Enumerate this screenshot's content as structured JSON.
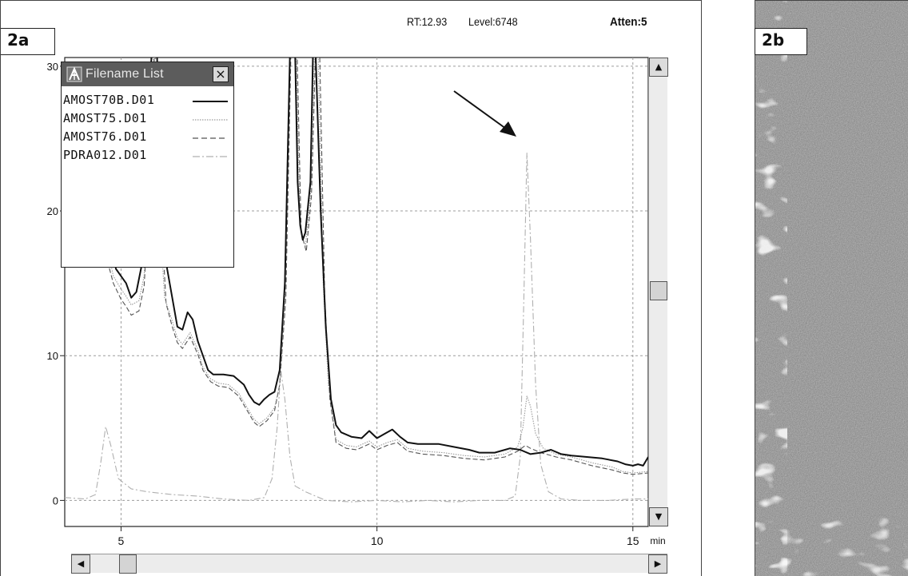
{
  "panel_a_label": "2a",
  "panel_b_label": "2b",
  "header": {
    "rt": "RT:12.93",
    "level": "Level:6748",
    "atten": "Atten:5"
  },
  "filename_window": {
    "title": "Filename List",
    "close_glyph": "×"
  },
  "scrollbar": {
    "up": "▲",
    "down": "▼",
    "left": "◀",
    "right": "▶"
  },
  "colors": {
    "amost70b": "#111111",
    "amost75": "#9a9a9a",
    "amost76": "#555555",
    "pdra012": "#b0b0b0",
    "grid": "#9c9c9c"
  },
  "chart_data": {
    "type": "line",
    "xlabel": "min",
    "ylabel": "",
    "xlim": [
      3.9,
      15.3
    ],
    "ylim": [
      -1.8,
      30.6
    ],
    "x_ticks": [
      5,
      10,
      15
    ],
    "y_ticks": [
      0,
      10,
      20,
      30
    ],
    "x_tick_labels": [
      "5",
      "10",
      "15"
    ],
    "y_tick_labels": [
      "0",
      "10",
      "20",
      "30"
    ],
    "grid": true,
    "legend": "top-left",
    "annotation": "arrow pointing to peak at 12.93 min",
    "series": [
      {
        "name": "AMOST70B.D01",
        "style": "solid",
        "points": [
          [
            4.7,
            20
          ],
          [
            4.8,
            18
          ],
          [
            4.9,
            16
          ],
          [
            5.0,
            15.5
          ],
          [
            5.1,
            15
          ],
          [
            5.2,
            14
          ],
          [
            5.3,
            14.4
          ],
          [
            5.4,
            16.2
          ],
          [
            5.5,
            20
          ],
          [
            5.55,
            28
          ],
          [
            5.6,
            31
          ],
          [
            5.7,
            31
          ],
          [
            5.8,
            20
          ],
          [
            5.9,
            16
          ],
          [
            6.0,
            14
          ],
          [
            6.1,
            12
          ],
          [
            6.2,
            11.8
          ],
          [
            6.3,
            13
          ],
          [
            6.4,
            12.5
          ],
          [
            6.5,
            11
          ],
          [
            6.6,
            10
          ],
          [
            6.7,
            9
          ],
          [
            6.8,
            8.7
          ],
          [
            7.0,
            8.7
          ],
          [
            7.2,
            8.6
          ],
          [
            7.4,
            8
          ],
          [
            7.5,
            7.3
          ],
          [
            7.6,
            6.8
          ],
          [
            7.7,
            6.6
          ],
          [
            7.8,
            7.0
          ],
          [
            7.9,
            7.3
          ],
          [
            8.0,
            7.5
          ],
          [
            8.1,
            9
          ],
          [
            8.2,
            15
          ],
          [
            8.3,
            31
          ],
          [
            8.35,
            31
          ],
          [
            8.4,
            31
          ],
          [
            8.45,
            22
          ],
          [
            8.5,
            19
          ],
          [
            8.55,
            18
          ],
          [
            8.6,
            18.5
          ],
          [
            8.7,
            22
          ],
          [
            8.75,
            31
          ],
          [
            8.8,
            31
          ],
          [
            8.9,
            20
          ],
          [
            9.0,
            12
          ],
          [
            9.1,
            7
          ],
          [
            9.2,
            5.2
          ],
          [
            9.3,
            4.7
          ],
          [
            9.5,
            4.4
          ],
          [
            9.7,
            4.3
          ],
          [
            9.85,
            4.8
          ],
          [
            10.0,
            4.3
          ],
          [
            10.15,
            4.6
          ],
          [
            10.3,
            4.9
          ],
          [
            10.45,
            4.4
          ],
          [
            10.6,
            4.0
          ],
          [
            10.8,
            3.9
          ],
          [
            11.2,
            3.9
          ],
          [
            11.5,
            3.7
          ],
          [
            11.8,
            3.5
          ],
          [
            12.0,
            3.3
          ],
          [
            12.3,
            3.3
          ],
          [
            12.6,
            3.6
          ],
          [
            12.8,
            3.5
          ],
          [
            13.0,
            3.2
          ],
          [
            13.2,
            3.3
          ],
          [
            13.4,
            3.5
          ],
          [
            13.6,
            3.2
          ],
          [
            13.8,
            3.1
          ],
          [
            14.1,
            3.0
          ],
          [
            14.4,
            2.9
          ],
          [
            14.7,
            2.7
          ],
          [
            14.85,
            2.5
          ],
          [
            15.0,
            2.4
          ],
          [
            15.1,
            2.5
          ],
          [
            15.2,
            2.4
          ],
          [
            15.3,
            3.0
          ]
        ]
      },
      {
        "name": "AMOST75.D01",
        "style": "dotted",
        "points": [
          [
            4.7,
            18
          ],
          [
            4.85,
            15.5
          ],
          [
            5.0,
            14.6
          ],
          [
            5.1,
            14.1
          ],
          [
            5.2,
            13.5
          ],
          [
            5.35,
            13.8
          ],
          [
            5.45,
            15.5
          ],
          [
            5.5,
            19
          ],
          [
            5.55,
            28
          ],
          [
            5.65,
            31
          ],
          [
            5.75,
            20
          ],
          [
            5.85,
            14
          ],
          [
            6.0,
            12.4
          ],
          [
            6.1,
            11.2
          ],
          [
            6.2,
            10.8
          ],
          [
            6.35,
            11.6
          ],
          [
            6.5,
            10.4
          ],
          [
            6.6,
            9.2
          ],
          [
            6.75,
            8.4
          ],
          [
            6.9,
            8.1
          ],
          [
            7.1,
            8.0
          ],
          [
            7.3,
            7.4
          ],
          [
            7.5,
            6.2
          ],
          [
            7.6,
            5.6
          ],
          [
            7.7,
            5.3
          ],
          [
            7.85,
            5.7
          ],
          [
            8.0,
            6.4
          ],
          [
            8.1,
            8
          ],
          [
            8.2,
            14
          ],
          [
            8.3,
            31
          ],
          [
            8.42,
            31
          ],
          [
            8.5,
            19
          ],
          [
            8.6,
            17.5
          ],
          [
            8.7,
            21
          ],
          [
            8.78,
            31
          ],
          [
            8.85,
            31
          ],
          [
            8.95,
            15
          ],
          [
            9.05,
            8
          ],
          [
            9.2,
            4.2
          ],
          [
            9.4,
            3.8
          ],
          [
            9.6,
            3.7
          ],
          [
            9.85,
            4.1
          ],
          [
            10.0,
            3.7
          ],
          [
            10.2,
            4.0
          ],
          [
            10.4,
            4.2
          ],
          [
            10.6,
            3.6
          ],
          [
            10.9,
            3.4
          ],
          [
            11.3,
            3.3
          ],
          [
            11.7,
            3.1
          ],
          [
            12.1,
            3.0
          ],
          [
            12.5,
            3.2
          ],
          [
            12.75,
            3.7
          ],
          [
            12.85,
            5
          ],
          [
            12.93,
            7.2
          ],
          [
            13.0,
            6.5
          ],
          [
            13.1,
            4.6
          ],
          [
            13.25,
            3.6
          ],
          [
            13.5,
            3.2
          ],
          [
            13.8,
            3.0
          ],
          [
            14.2,
            2.6
          ],
          [
            14.6,
            2.3
          ],
          [
            14.8,
            2.0
          ],
          [
            15.0,
            1.9
          ],
          [
            15.3,
            2.0
          ]
        ]
      },
      {
        "name": "AMOST76.D01",
        "style": "dashed",
        "points": [
          [
            4.7,
            17
          ],
          [
            4.85,
            15
          ],
          [
            5.0,
            13.9
          ],
          [
            5.1,
            13.4
          ],
          [
            5.2,
            12.8
          ],
          [
            5.35,
            13.1
          ],
          [
            5.45,
            14.8
          ],
          [
            5.52,
            19
          ],
          [
            5.58,
            28
          ],
          [
            5.66,
            31
          ],
          [
            5.78,
            20
          ],
          [
            5.88,
            13.6
          ],
          [
            6.0,
            12.0
          ],
          [
            6.1,
            10.9
          ],
          [
            6.2,
            10.5
          ],
          [
            6.35,
            11.3
          ],
          [
            6.5,
            10.1
          ],
          [
            6.6,
            9.0
          ],
          [
            6.75,
            8.2
          ],
          [
            6.9,
            7.9
          ],
          [
            7.1,
            7.8
          ],
          [
            7.3,
            7.2
          ],
          [
            7.5,
            6.0
          ],
          [
            7.6,
            5.4
          ],
          [
            7.7,
            5.1
          ],
          [
            7.85,
            5.5
          ],
          [
            8.0,
            6.2
          ],
          [
            8.1,
            8
          ],
          [
            8.22,
            14
          ],
          [
            8.32,
            31
          ],
          [
            8.44,
            31
          ],
          [
            8.52,
            18.5
          ],
          [
            8.62,
            17.2
          ],
          [
            8.72,
            21
          ],
          [
            8.8,
            31
          ],
          [
            8.88,
            31
          ],
          [
            8.98,
            14
          ],
          [
            9.08,
            7
          ],
          [
            9.2,
            4.0
          ],
          [
            9.4,
            3.6
          ],
          [
            9.6,
            3.5
          ],
          [
            9.85,
            3.9
          ],
          [
            10.0,
            3.5
          ],
          [
            10.2,
            3.8
          ],
          [
            10.4,
            4.0
          ],
          [
            10.6,
            3.4
          ],
          [
            10.9,
            3.2
          ],
          [
            11.3,
            3.1
          ],
          [
            11.7,
            2.9
          ],
          [
            12.1,
            2.8
          ],
          [
            12.5,
            3.0
          ],
          [
            12.75,
            3.4
          ],
          [
            12.9,
            3.8
          ],
          [
            13.0,
            3.6
          ],
          [
            13.2,
            3.3
          ],
          [
            13.5,
            3.0
          ],
          [
            13.8,
            2.8
          ],
          [
            14.2,
            2.4
          ],
          [
            14.6,
            2.1
          ],
          [
            14.8,
            1.9
          ],
          [
            15.0,
            1.8
          ],
          [
            15.3,
            1.9
          ]
        ]
      },
      {
        "name": "PDRA012.D01",
        "style": "dash-dot",
        "points": [
          [
            3.9,
            0.2
          ],
          [
            4.3,
            0.1
          ],
          [
            4.5,
            0.4
          ],
          [
            4.6,
            2.5
          ],
          [
            4.7,
            5.1
          ],
          [
            4.8,
            3.8
          ],
          [
            4.95,
            1.5
          ],
          [
            5.2,
            0.8
          ],
          [
            5.5,
            0.6
          ],
          [
            6.0,
            0.4
          ],
          [
            6.5,
            0.3
          ],
          [
            7.0,
            0.1
          ],
          [
            7.5,
            0.0
          ],
          [
            7.8,
            0.2
          ],
          [
            7.95,
            1.5
          ],
          [
            8.05,
            5
          ],
          [
            8.12,
            9
          ],
          [
            8.2,
            7
          ],
          [
            8.3,
            3
          ],
          [
            8.4,
            1.0
          ],
          [
            8.6,
            0.6
          ],
          [
            8.8,
            0.3
          ],
          [
            9.0,
            0.0
          ],
          [
            9.5,
            -0.1
          ],
          [
            10.0,
            0.0
          ],
          [
            10.5,
            -0.1
          ],
          [
            11.0,
            0.0
          ],
          [
            11.5,
            -0.1
          ],
          [
            12.0,
            0.0
          ],
          [
            12.5,
            0.0
          ],
          [
            12.7,
            0.3
          ],
          [
            12.8,
            3
          ],
          [
            12.87,
            14
          ],
          [
            12.93,
            24
          ],
          [
            13.0,
            18
          ],
          [
            13.1,
            8
          ],
          [
            13.2,
            2.5
          ],
          [
            13.35,
            0.6
          ],
          [
            13.6,
            0.1
          ],
          [
            14.0,
            0.0
          ],
          [
            14.5,
            0.0
          ],
          [
            15.0,
            0.1
          ],
          [
            15.3,
            0.1
          ]
        ]
      }
    ]
  }
}
